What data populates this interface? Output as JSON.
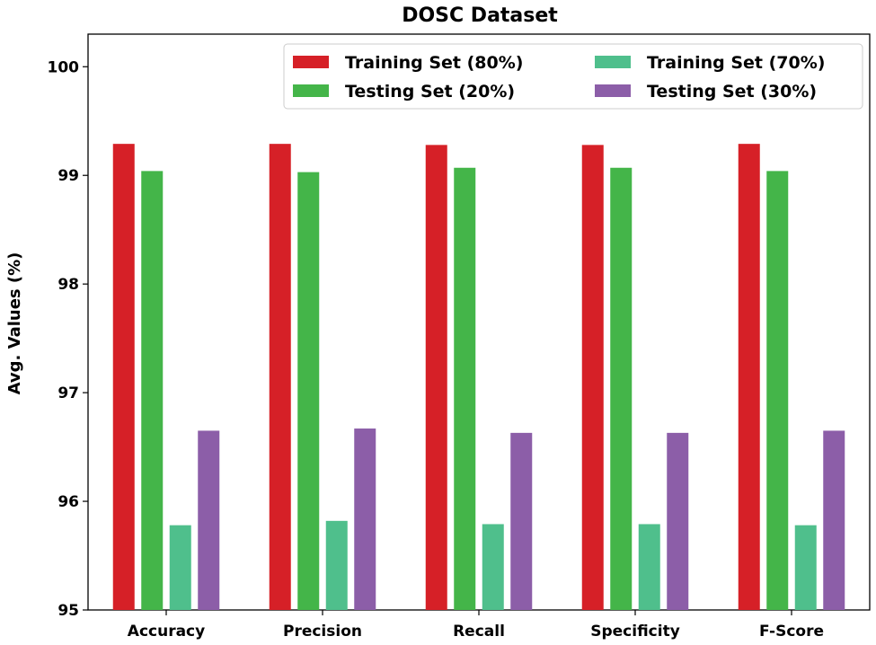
{
  "chart_data": {
    "type": "bar",
    "title": "DOSC Dataset",
    "xlabel": "",
    "ylabel": "Avg. Values (%)",
    "ylim": [
      95,
      100.3
    ],
    "yticks": [
      95,
      96,
      97,
      98,
      99,
      100
    ],
    "categories": [
      "Accuracy",
      "Precision",
      "Recall",
      "Specificity",
      "F-Score"
    ],
    "series": [
      {
        "name": "Training Set (80%)",
        "color": "#d62027",
        "values": [
          99.29,
          99.29,
          99.28,
          99.28,
          99.29
        ]
      },
      {
        "name": "Testing Set (20%)",
        "color": "#44b549",
        "values": [
          99.04,
          99.03,
          99.07,
          99.07,
          99.04
        ]
      },
      {
        "name": "Training Set (70%)",
        "color": "#4fbf8c",
        "values": [
          95.78,
          95.82,
          95.79,
          95.79,
          95.78
        ]
      },
      {
        "name": "Testing Set (30%)",
        "color": "#8c5ea8",
        "values": [
          96.65,
          96.67,
          96.63,
          96.63,
          96.65
        ]
      }
    ],
    "legend": {
      "position": "top-right",
      "columns": 2
    }
  }
}
